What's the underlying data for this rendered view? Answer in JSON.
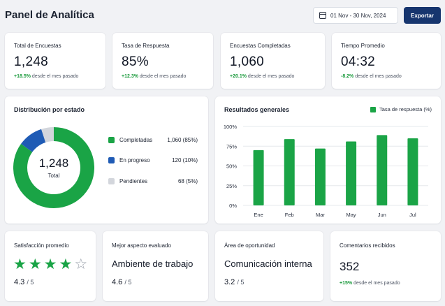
{
  "header": {
    "title": "Panel de Analítica",
    "date_range": "01 Nov - 30 Nov, 2024",
    "export_label": "Exportar",
    "calendar_icon": "calendar-icon"
  },
  "kpis": [
    {
      "label": "Total de Encuestas",
      "value": "1,248",
      "delta": "+18.5%",
      "delta_text": "desde el mes pasado"
    },
    {
      "label": "Tasa de Respuesta",
      "value": "85%",
      "delta": "+12.3%",
      "delta_text": "desde el mes pasado"
    },
    {
      "label": "Encuestas Completadas",
      "value": "1,060",
      "delta": "+20.1%",
      "delta_text": "desde el mes pasado"
    },
    {
      "label": "Tiempo Promedio",
      "value": "04:32",
      "delta": "-8.2%",
      "delta_text": "desde el mes pasado"
    }
  ],
  "distribution": {
    "title": "Distribución por estado",
    "center_value": "1,248",
    "center_label": "Total",
    "items": [
      {
        "name": "Completadas",
        "value": "1,060 (85%)",
        "share": 85,
        "color": "#1aa446"
      },
      {
        "name": "En progreso",
        "value": "120 (10%)",
        "share": 10,
        "color": "#1f5bb5"
      },
      {
        "name": "Pendientes",
        "value": "68 (5%)",
        "share": 5,
        "color": "#d3d6dc"
      }
    ]
  },
  "chart_data": {
    "type": "bar",
    "title": "Resultados generales",
    "categories": [
      "Ene",
      "Feb",
      "Mar",
      "May",
      "Jun",
      "Jul"
    ],
    "series": [
      {
        "name": "Tasa de respuesta (%)",
        "values": [
          70,
          84,
          72,
          81,
          89,
          85
        ],
        "color": "#1aa446"
      }
    ],
    "yticks": [
      "0%",
      "25%",
      "50%",
      "75%",
      "100%"
    ],
    "ylim": [
      0,
      100
    ],
    "grid": true,
    "legend": "top-right"
  },
  "bottom": {
    "satisfaction": {
      "title": "Satisfacción promedio",
      "score": "4.3",
      "denom": "/ 5",
      "stars_filled": 4,
      "stars_total": 5
    },
    "best": {
      "title": "Mejor aspecto evaluado",
      "text": "Ambiente de trabajo",
      "score": "4.6",
      "denom": "/ 5"
    },
    "opportunity": {
      "title": "Área de oportunidad",
      "text": "Comunicación interna",
      "score": "3.2",
      "denom": "/ 5"
    },
    "comments": {
      "title": "Comentarios recibidos",
      "value": "352",
      "delta": "+15%",
      "delta_text": "desde el mes pasado"
    }
  }
}
